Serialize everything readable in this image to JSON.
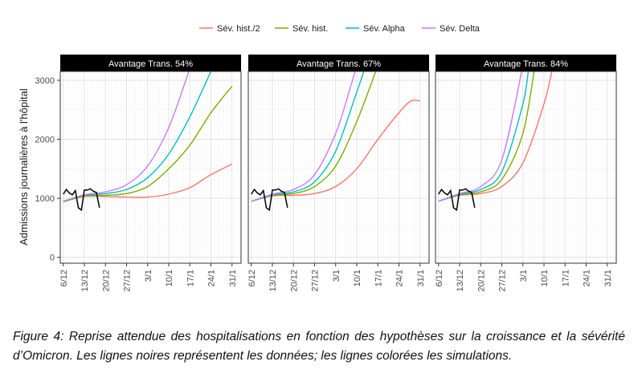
{
  "chart_data": {
    "type": "line",
    "ylabel": "Admissions journalières à l'hôpital",
    "xlabel": "",
    "ylim": [
      -100,
      3150
    ],
    "y_ticks": [
      0,
      1000,
      2000,
      3000
    ],
    "x_ticks": [
      "6/12",
      "13/12",
      "20/12",
      "27/12",
      "3/1",
      "10/1",
      "17/1",
      "24/1",
      "31/1"
    ],
    "x_range_days": [
      "5/12",
      "3/2"
    ],
    "grid": true,
    "legend": {
      "position": "top",
      "entries": [
        {
          "name": "Sév. hist./2",
          "color": "#F8766D"
        },
        {
          "name": "Sév. hist.",
          "color": "#7CAE00"
        },
        {
          "name": "Sév. Alpha",
          "color": "#00BFC4"
        },
        {
          "name": "Sév. Delta",
          "color": "#C77CFF"
        }
      ]
    },
    "observed_color": "#000000",
    "observed": {
      "x": [
        "6/12",
        "7/12",
        "8/12",
        "9/12",
        "10/12",
        "11/12",
        "12/12",
        "13/12",
        "14/12",
        "15/12",
        "16/12",
        "17/12",
        "18/12"
      ],
      "y": [
        1070,
        1150,
        1090,
        1060,
        1130,
        840,
        800,
        1140,
        1140,
        1160,
        1120,
        1100,
        840
      ]
    },
    "panels": [
      {
        "title": "Avantage Trans. 54%",
        "series": [
          {
            "name": "Sév. hist./2",
            "x": [
              "6/12",
              "13/12",
              "20/12",
              "27/12",
              "3/1",
              "10/1",
              "17/1",
              "24/1",
              "31/1"
            ],
            "y": [
              940,
              1030,
              1030,
              1020,
              1020,
              1070,
              1180,
              1400,
              1580
            ]
          },
          {
            "name": "Sév. hist.",
            "x": [
              "6/12",
              "13/12",
              "20/12",
              "27/12",
              "3/1",
              "10/1",
              "17/1",
              "24/1",
              "31/1"
            ],
            "y": [
              940,
              1040,
              1050,
              1080,
              1200,
              1500,
              1900,
              2450,
              2900
            ]
          },
          {
            "name": "Sév. Alpha",
            "x": [
              "6/12",
              "13/12",
              "20/12",
              "27/12",
              "3/1",
              "10/1",
              "17/1",
              "24/1"
            ],
            "y": [
              950,
              1050,
              1080,
              1150,
              1350,
              1750,
              2380,
              3150
            ]
          },
          {
            "name": "Sév. Delta",
            "x": [
              "6/12",
              "13/12",
              "20/12",
              "27/12",
              "3/1",
              "10/1",
              "17/1"
            ],
            "y": [
              950,
              1060,
              1110,
              1230,
              1550,
              2200,
              3200
            ]
          }
        ]
      },
      {
        "title": "Avantage Trans. 67%",
        "series": [
          {
            "name": "Sév. hist./2",
            "x": [
              "6/12",
              "13/12",
              "20/12",
              "27/12",
              "3/1",
              "10/1",
              "17/1",
              "24/1",
              "28/1",
              "31/1"
            ],
            "y": [
              950,
              1040,
              1050,
              1080,
              1200,
              1500,
              2000,
              2450,
              2650,
              2650
            ]
          },
          {
            "name": "Sév. hist.",
            "x": [
              "6/12",
              "13/12",
              "20/12",
              "27/12",
              "3/1",
              "10/1",
              "17/1"
            ],
            "y": [
              950,
              1050,
              1080,
              1200,
              1550,
              2300,
              3250
            ]
          },
          {
            "name": "Sév. Alpha",
            "x": [
              "6/12",
              "13/12",
              "20/12",
              "27/12",
              "3/1",
              "10/1",
              "13/1"
            ],
            "y": [
              950,
              1060,
              1110,
              1280,
              1800,
              2800,
              3250
            ]
          },
          {
            "name": "Sév. Delta",
            "x": [
              "6/12",
              "13/12",
              "20/12",
              "27/12",
              "3/1",
              "8/1",
              "10/1"
            ],
            "y": [
              950,
              1070,
              1150,
              1400,
              2100,
              2900,
              3250
            ]
          }
        ]
      },
      {
        "title": "Avantage Trans. 84%",
        "series": [
          {
            "name": "Sév. hist./2",
            "x": [
              "6/12",
              "13/12",
              "20/12",
              "27/12",
              "3/1",
              "10/1",
              "13/1"
            ],
            "y": [
              950,
              1050,
              1080,
              1200,
              1600,
              2600,
              3250
            ]
          },
          {
            "name": "Sév. hist.",
            "x": [
              "6/12",
              "13/12",
              "20/12",
              "27/12",
              "3/1",
              "7/1"
            ],
            "y": [
              950,
              1060,
              1110,
              1320,
              2100,
              3250
            ]
          },
          {
            "name": "Sév. Alpha",
            "x": [
              "6/12",
              "13/12",
              "20/12",
              "27/12",
              "3/1",
              "5/1"
            ],
            "y": [
              950,
              1070,
              1150,
              1450,
              2600,
              3250
            ]
          },
          {
            "name": "Sév. Delta",
            "x": [
              "6/12",
              "13/12",
              "20/12",
              "27/12",
              "3/1"
            ],
            "y": [
              950,
              1080,
              1200,
              1650,
              3250
            ]
          }
        ]
      }
    ]
  },
  "caption": "Figure 4: Reprise attendue des hospitalisations en fonction des hypothèses sur la croissance et la sévérité d’Omicron. Les lignes noires représentent les données; les lignes colorées les simulations."
}
